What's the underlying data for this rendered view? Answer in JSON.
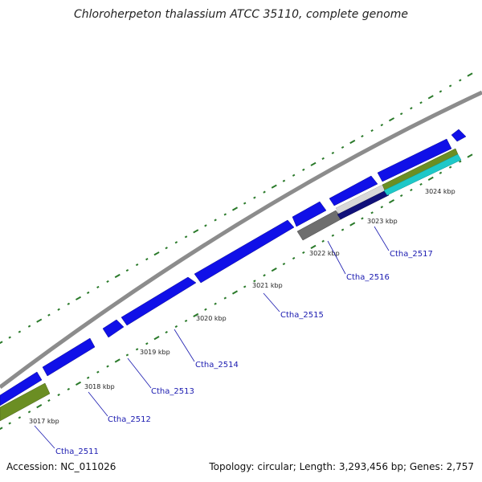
{
  "title": "Chloroherpeton thalassium ATCC 35110, complete genome",
  "footer": {
    "accession": "Accession: NC_011026",
    "summary": "Topology: circular; Length: 3,293,456 bp; Genes: 2,757"
  },
  "colors": {
    "backbone": "#8c8c8c",
    "cds": "#1010e8",
    "tick": "#2a7a2a",
    "gene_label": "#1a1ab0",
    "olive": "#6b8e23",
    "gray": "#6e6e6e",
    "cyan": "#1ec8c8",
    "navy": "#10107a"
  },
  "ticks": [
    "3017 kbp",
    "3018 kbp",
    "3019 kbp",
    "3020 kbp",
    "3021 kbp",
    "3022 kbp",
    "3023 kbp",
    "3024 kbp"
  ],
  "genes": [
    "Ctha_2511",
    "Ctha_2512",
    "Ctha_2513",
    "Ctha_2514",
    "Ctha_2515",
    "Ctha_2516",
    "Ctha_2517"
  ]
}
